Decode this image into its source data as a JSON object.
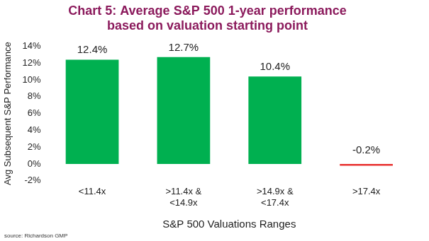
{
  "chart_data": {
    "type": "bar",
    "title": "Chart 5: Average S&P 500 1-year performance based on valuation starting point",
    "x_label": "S&P 500 Valuations Ranges",
    "y_label": "Avg Subsequent S&P Performance",
    "source": "source: Richardson GMP",
    "categories": [
      "<11.4x",
      ">11.4x & <14.9x",
      ">14.9x & <17.4x",
      ">17.4x"
    ],
    "values": [
      12.4,
      12.7,
      10.4,
      -0.2
    ],
    "value_labels": [
      "12.4%",
      "12.7%",
      "10.4%",
      "-0.2%"
    ],
    "colors": [
      "#00b050",
      "#00b050",
      "#00b050",
      "#e8312f"
    ],
    "data_labels": true,
    "ylim": [
      -2,
      14
    ],
    "yticks": [
      {
        "value": -2,
        "label": "-2%"
      },
      {
        "value": 0,
        "label": "0%"
      },
      {
        "value": 2,
        "label": "2%"
      },
      {
        "value": 4,
        "label": "4%"
      },
      {
        "value": 6,
        "label": "6%"
      },
      {
        "value": 8,
        "label": "8%"
      },
      {
        "value": 10,
        "label": "10%"
      },
      {
        "value": 12,
        "label": "12%"
      },
      {
        "value": 14,
        "label": "14%"
      }
    ],
    "grid": false
  }
}
